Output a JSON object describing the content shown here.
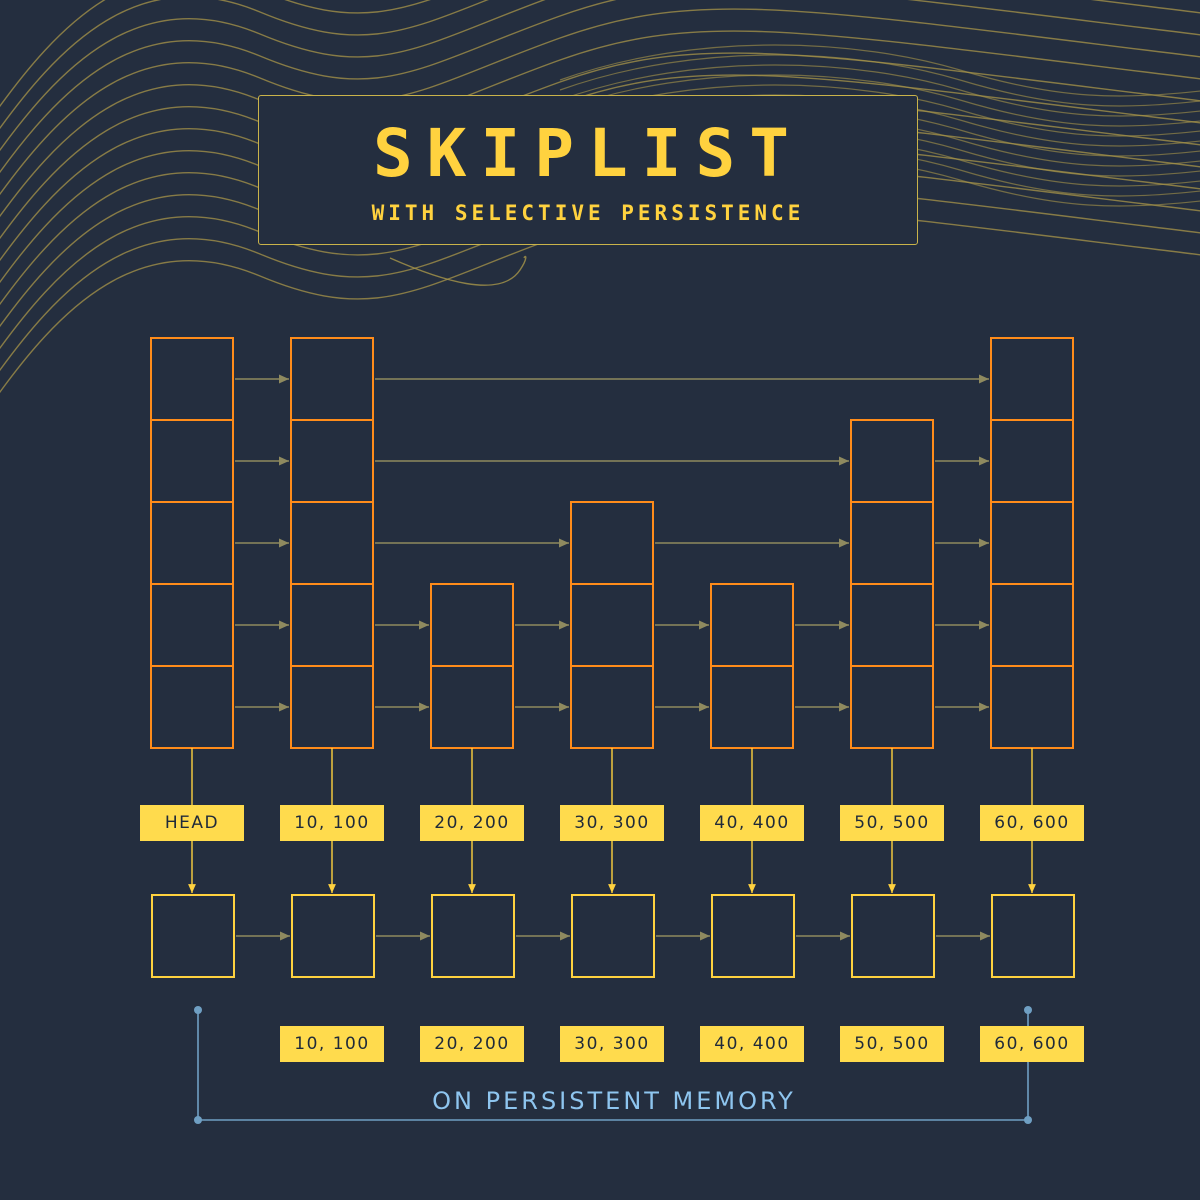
{
  "title": "SKIPLIST",
  "subtitle": "WITH SELECTIVE PERSISTENCE",
  "nodes": [
    {
      "key": "HEAD",
      "levels": 5
    },
    {
      "key": "10, 100",
      "levels": 5
    },
    {
      "key": "20, 200",
      "levels": 2
    },
    {
      "key": "30, 300",
      "levels": 3
    },
    {
      "key": "40, 400",
      "levels": 2
    },
    {
      "key": "50, 500",
      "levels": 4
    },
    {
      "key": "60, 600",
      "levels": 5
    }
  ],
  "persistent_values": [
    "10, 100",
    "20, 200",
    "30, 300",
    "40, 400",
    "50, 500",
    "60, 600"
  ],
  "persistent_memory_label": "ON PERSISTENT MEMORY",
  "colors": {
    "background": "#242e3f",
    "tower_stroke": "#ff8c1a",
    "node_stroke": "#ffd23f",
    "label_fill": "#ffdb4d",
    "arrow": "#8f8a5f",
    "bracket": "#6f9fc3",
    "accent_text": "#ffd23f",
    "memory_text": "#8ec5ef"
  }
}
